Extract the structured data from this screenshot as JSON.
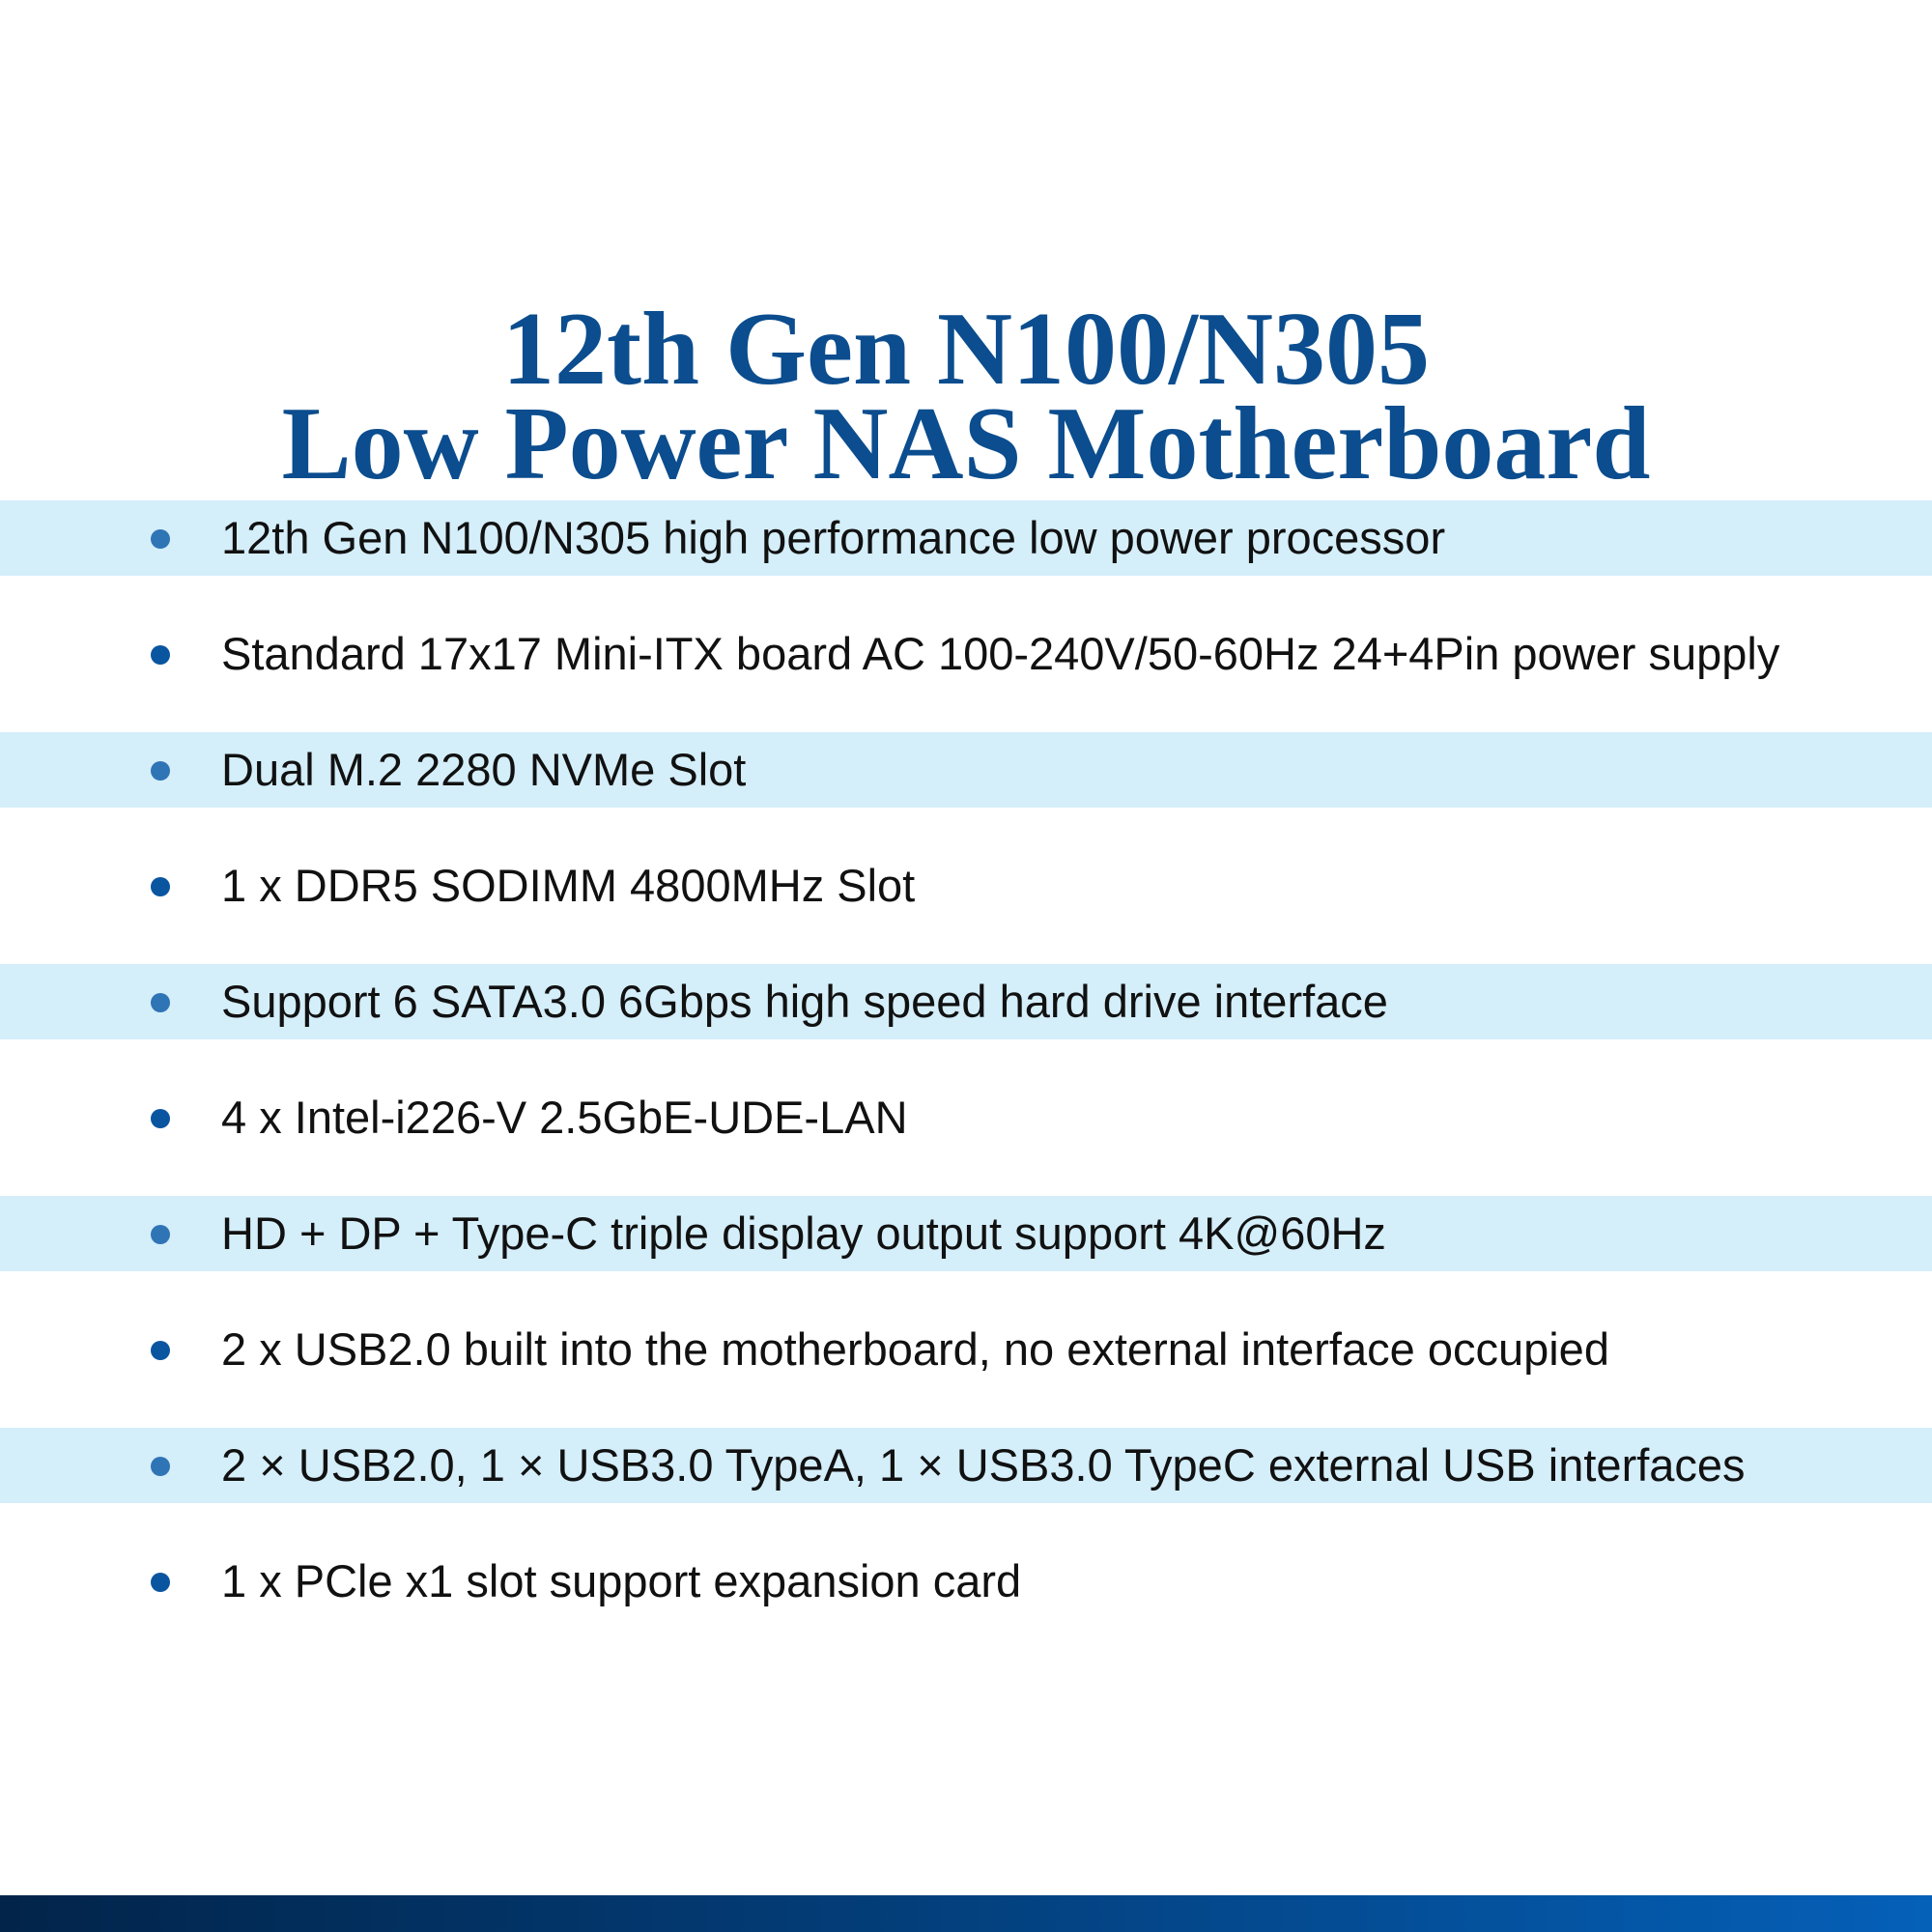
{
  "title": {
    "line1": "12th Gen N100/N305",
    "line2": "Low Power NAS Motherboard"
  },
  "features": [
    "12th Gen N100/N305 high performance low power processor",
    "Standard 17x17 Mini-ITX board AC 100-240V/50-60Hz 24+4Pin power supply",
    "Dual M.2 2280 NVMe Slot",
    "1 x DDR5 SODIMM 4800MHz Slot",
    "Support 6 SATA3.0 6Gbps high speed hard drive interface",
    "4 x Intel-i226-V 2.5GbE-UDE-LAN",
    "HD + DP + Type-C triple display output support 4K@60Hz",
    "2 x USB2.0 built into the motherboard, no external interface occupied",
    "2 × USB2.0, 1 × USB3.0 TypeA, 1 × USB3.0 TypeC external USB interfaces",
    "1 x PCle x1 slot support expansion card"
  ],
  "colors": {
    "title": "#0b4d8e",
    "band": "#d4eefa",
    "bullet": "#0a55a0",
    "footer_start": "#02244a",
    "footer_end": "#0560b8"
  }
}
